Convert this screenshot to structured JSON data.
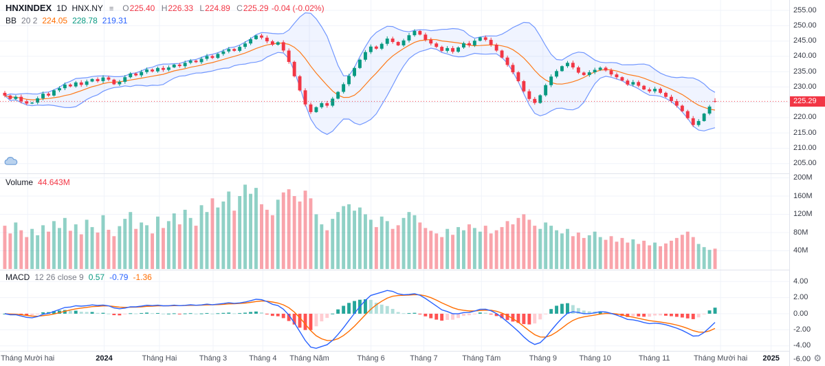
{
  "header": {
    "symbol": "HNXINDEX",
    "interval": "1D",
    "exchange": "HNX.NY",
    "menu_icon": "≡",
    "ohlc": {
      "o_label": "O",
      "o": "225.40",
      "h_label": "H",
      "h": "226.33",
      "l_label": "L",
      "l": "224.89",
      "c_label": "C",
      "c": "225.29",
      "change": "-0.04 (-0.02%)"
    }
  },
  "indicators": {
    "bb": {
      "name": "BB",
      "params": "20 2",
      "basis": "224.05",
      "upper": "228.78",
      "lower": "219.31"
    },
    "volume": {
      "name": "Volume",
      "value": "44.643M"
    },
    "macd": {
      "name": "MACD",
      "params": "12 26 close 9",
      "hist": "0.57",
      "macd": "-0.79",
      "signal": "-1.36"
    }
  },
  "axes": {
    "price_ticks": [
      "255.00",
      "250.00",
      "245.00",
      "240.00",
      "235.00",
      "230.00",
      "225.00",
      "220.00",
      "215.00",
      "210.00",
      "205.00"
    ],
    "volume_ticks": [
      "200M",
      "160M",
      "120M",
      "80M",
      "40M"
    ],
    "macd_ticks": [
      "4.00",
      "2.00",
      "0.00",
      "-2.00",
      "-4.00",
      "-6.00"
    ],
    "last_price_label": "225.29"
  },
  "time_axis": {
    "gear_icon": "⚙",
    "labels": [
      {
        "t": "Tháng Mười hai",
        "x": 0.035,
        "bold": false
      },
      {
        "t": "2024",
        "x": 0.132,
        "bold": true
      },
      {
        "t": "Tháng Hai",
        "x": 0.202,
        "bold": false
      },
      {
        "t": "Tháng 3",
        "x": 0.27,
        "bold": false
      },
      {
        "t": "Tháng 4",
        "x": 0.333,
        "bold": false
      },
      {
        "t": "Tháng Năm",
        "x": 0.392,
        "bold": false
      },
      {
        "t": "Tháng 6",
        "x": 0.47,
        "bold": false
      },
      {
        "t": "Tháng 7",
        "x": 0.537,
        "bold": false
      },
      {
        "t": "Tháng Tám",
        "x": 0.61,
        "bold": false
      },
      {
        "t": "Tháng 9",
        "x": 0.688,
        "bold": false
      },
      {
        "t": "Tháng 10",
        "x": 0.754,
        "bold": false
      },
      {
        "t": "Tháng 11",
        "x": 0.829,
        "bold": false
      },
      {
        "t": "Tháng Mười hai",
        "x": 0.913,
        "bold": false
      },
      {
        "t": "2025",
        "x": 0.977,
        "bold": true
      }
    ]
  },
  "colors": {
    "up": "#089981",
    "down": "#f23645",
    "bb_band": "#2962ff",
    "bb_basis": "#ff6d00",
    "macd_line": "#2962ff",
    "signal_line": "#ff6d00",
    "hist_up_grow": "#26a69a",
    "hist_up_fall": "#b2dfdb",
    "hist_down_grow": "#ffcdd2",
    "hist_down_fall": "#ff5252",
    "grid": "#f0f3fa",
    "separator": "#e0e3eb",
    "last_price": "#f23645"
  },
  "chart_data": {
    "type": "candlestick+volume+macd",
    "title": "HNXINDEX 1D HNX.NY",
    "x_range": [
      "Dec 2023",
      "Dec 2024"
    ],
    "price_ylim": [
      201.8,
      258.4
    ],
    "volume_ylim_m": [
      0,
      210
    ],
    "macd_ylim": [
      -6.0,
      4.6
    ],
    "grid": true,
    "closes": [
      227.2,
      226.1,
      226.8,
      225.3,
      224.6,
      224.9,
      226.3,
      227.8,
      227.2,
      228.9,
      229.6,
      230.8,
      230.2,
      231.5,
      230.7,
      231.8,
      232.6,
      231.9,
      233.1,
      232.4,
      230.9,
      231.7,
      233.2,
      234.4,
      233.8,
      234.9,
      235.7,
      235.1,
      236.2,
      235.6,
      236.4,
      237.3,
      236.8,
      237.9,
      238.6,
      238.1,
      239.2,
      240.1,
      239.5,
      240.8,
      241.6,
      242.4,
      241.8,
      243.1,
      244.2,
      245.6,
      246.8,
      246.1,
      244.9,
      243.8,
      244.6,
      241.9,
      238.2,
      233.5,
      228.9,
      224.3,
      221.8,
      223.4,
      224.7,
      223.9,
      226.2,
      228.4,
      230.9,
      233.6,
      236.2,
      238.9,
      241.4,
      243.2,
      242.5,
      244.1,
      245.8,
      244.7,
      243.6,
      245.2,
      246.9,
      248.3,
      247.1,
      245.4,
      244.2,
      243.1,
      241.8,
      242.7,
      241.5,
      242.9,
      244.3,
      243.6,
      245.1,
      246.2,
      245.4,
      243.8,
      241.9,
      239.6,
      237.2,
      234.8,
      231.9,
      228.6,
      226.1,
      224.8,
      227.3,
      230.6,
      233.4,
      235.2,
      236.8,
      237.9,
      236.4,
      234.7,
      233.9,
      234.8,
      235.6,
      236.3,
      235.4,
      234.1,
      233.2,
      232.1,
      230.8,
      231.6,
      230.4,
      229.2,
      228.6,
      229.4,
      228.1,
      226.8,
      225.4,
      223.9,
      222.1,
      219.8,
      217.6,
      218.9,
      221.3,
      223.6,
      225.29
    ],
    "volumes_m": [
      95,
      78,
      102,
      85,
      70,
      88,
      74,
      96,
      82,
      105,
      90,
      112,
      84,
      98,
      76,
      108,
      92,
      80,
      118,
      86,
      72,
      94,
      110,
      125,
      88,
      102,
      96,
      78,
      115,
      90,
      105,
      122,
      98,
      130,
      112,
      95,
      140,
      125,
      155,
      135,
      148,
      170,
      128,
      160,
      185,
      165,
      178,
      142,
      130,
      118,
      152,
      168,
      175,
      160,
      148,
      172,
      155,
      120,
      98,
      85,
      110,
      125,
      138,
      142,
      128,
      135,
      120,
      108,
      92,
      115,
      105,
      88,
      96,
      112,
      125,
      118,
      102,
      90,
      84,
      78,
      70,
      88,
      75,
      92,
      85,
      98,
      90,
      82,
      95,
      78,
      85,
      92,
      105,
      98,
      112,
      120,
      108,
      95,
      88,
      102,
      95,
      85,
      78,
      88,
      72,
      80,
      68,
      74,
      82,
      70,
      64,
      72,
      60,
      68,
      58,
      65,
      55,
      62,
      52,
      58,
      50,
      56,
      62,
      68,
      75,
      82,
      70,
      55,
      48,
      42,
      44.643
    ],
    "last": {
      "open": 225.4,
      "high": 226.33,
      "low": 224.89,
      "close": 225.29
    },
    "last_volume_m": 44.643,
    "bollinger": {
      "length": 20,
      "mult": 2,
      "last_basis": 224.05,
      "last_upper": 228.78,
      "last_lower": 219.31
    },
    "macd_params": {
      "fast": 12,
      "slow": 26,
      "source": "close",
      "signal": 9,
      "last_hist": 0.57,
      "last_macd": -0.79,
      "last_signal": -1.36
    },
    "compression_bars_per_day": 2
  }
}
